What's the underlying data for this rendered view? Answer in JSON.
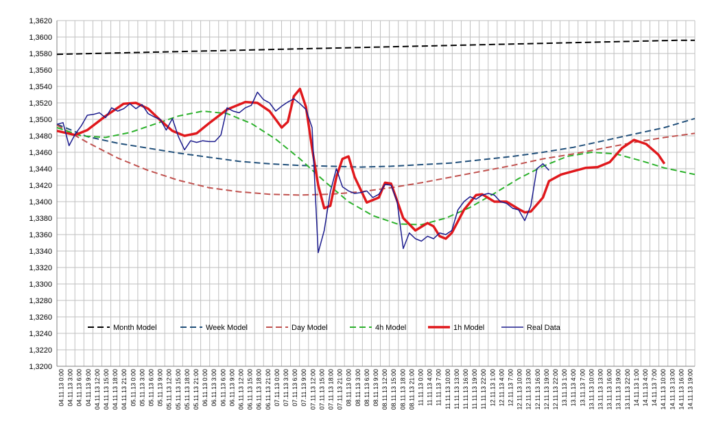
{
  "chart_data": {
    "type": "line",
    "title": "",
    "xlabel": "",
    "ylabel": "",
    "ylim": [
      1.32,
      1.362
    ],
    "grid": true,
    "legend_position": "bottom-inside",
    "y_ticks": [
      "1,3200",
      "1,3220",
      "1,3240",
      "1,3260",
      "1,3280",
      "1,3300",
      "1,3320",
      "1,3340",
      "1,3360",
      "1,3380",
      "1,3400",
      "1,3420",
      "1,3440",
      "1,3460",
      "1,3480",
      "1,3500",
      "1,3520",
      "1,3540",
      "1,3560",
      "1,3580",
      "1,3600",
      "1,3620"
    ],
    "x_ticks": [
      "04.11.13 0:00",
      "04.11.13 3:00",
      "04.11.13 6:00",
      "04.11.13 9:00",
      "04.11.13 12:00",
      "04.11.13 15:00",
      "04.11.13 18:00",
      "04.11.13 21:00",
      "05.11.13 0:00",
      "05.11.13 3:00",
      "05.11.13 6:00",
      "05.11.13 9:00",
      "05.11.13 12:00",
      "05.11.13 15:00",
      "05.11.13 18:00",
      "05.11.13 21:00",
      "06.11.13 0:00",
      "06.11.13 3:00",
      "06.11.13 6:00",
      "06.11.13 9:00",
      "06.11.13 12:00",
      "06.11.13 15:00",
      "06.11.13 18:00",
      "06.11.13 21:00",
      "07.11.13 0:00",
      "07.11.13 3:00",
      "07.11.13 6:00",
      "07.11.13 9:00",
      "07.11.13 12:00",
      "07.11.13 15:00",
      "07.11.13 18:00",
      "07.11.13 21:00",
      "08.11.13 0:00",
      "08.11.13 3:00",
      "08.11.13 6:00",
      "08.11.13 9:00",
      "08.11.13 12:00",
      "08.11.13 15:00",
      "08.11.13 18:00",
      "08.11.13 21:00",
      "11.11.13 0:00",
      "11.11.13 4:00",
      "11.11.13 7:00",
      "11.11.13 10:00",
      "11.11.13 13:00",
      "11.11.13 16:00",
      "11.11.13 19:00",
      "11.11.13 22:00",
      "12.11.13 1:00",
      "12.11.13 4:00",
      "12.11.13 7:00",
      "12.11.13 10:00",
      "12.11.13 13:00",
      "12.11.13 16:00",
      "12.11.13 19:00",
      "12.11.13 22:00",
      "13.11.13 1:00",
      "13.11.13 4:00",
      "13.11.13 7:00",
      "13.11.13 10:00",
      "13.11.13 13:00",
      "13.11.13 16:00",
      "13.11.13 19:00",
      "13.11.13 22:00",
      "14.11.13 1:00",
      "14.11.13 4:00",
      "14.11.13 7:00",
      "14.11.13 10:00",
      "14.11.13 13:00",
      "14.11.13 16:00",
      "14.11.13 19:00"
    ],
    "series": [
      {
        "name": "Month Model",
        "color": "#000000",
        "dash": "dashed",
        "width": 2,
        "values": [
          [
            0,
            1.3579
          ],
          [
            6,
            1.358
          ],
          [
            12,
            1.3581
          ],
          [
            18,
            1.3582
          ],
          [
            24,
            1.3583
          ],
          [
            30,
            1.3584
          ],
          [
            36,
            1.3585
          ],
          [
            42,
            1.3586
          ],
          [
            48,
            1.3587
          ],
          [
            54,
            1.3588
          ],
          [
            60,
            1.3589
          ],
          [
            66,
            1.359
          ],
          [
            72,
            1.3591
          ],
          [
            78,
            1.3592
          ],
          [
            84,
            1.3593
          ],
          [
            90,
            1.3594
          ],
          [
            96,
            1.3595
          ],
          [
            102,
            1.3596
          ],
          [
            105,
            1.3596
          ]
        ]
      },
      {
        "name": "Week Model",
        "color": "#1f4e79",
        "dash": "dashed",
        "width": 2,
        "values": [
          [
            0,
            1.3494
          ],
          [
            5,
            1.3479
          ],
          [
            10,
            1.3471
          ],
          [
            15,
            1.3465
          ],
          [
            20,
            1.3459
          ],
          [
            25,
            1.3454
          ],
          [
            30,
            1.3449
          ],
          [
            35,
            1.3446
          ],
          [
            40,
            1.3444
          ],
          [
            45,
            1.3443
          ],
          [
            50,
            1.3442
          ],
          [
            55,
            1.3443
          ],
          [
            60,
            1.3445
          ],
          [
            65,
            1.3447
          ],
          [
            70,
            1.3451
          ],
          [
            75,
            1.3455
          ],
          [
            80,
            1.346
          ],
          [
            85,
            1.3466
          ],
          [
            90,
            1.3474
          ],
          [
            95,
            1.3482
          ],
          [
            100,
            1.349
          ],
          [
            105,
            1.3501
          ]
        ]
      },
      {
        "name": "Day Model",
        "color": "#c0504d",
        "dash": "dashed",
        "width": 2,
        "values": [
          [
            0,
            1.3493
          ],
          [
            5,
            1.3472
          ],
          [
            10,
            1.3453
          ],
          [
            15,
            1.3438
          ],
          [
            20,
            1.3426
          ],
          [
            25,
            1.3417
          ],
          [
            30,
            1.3412
          ],
          [
            35,
            1.3409
          ],
          [
            40,
            1.3408
          ],
          [
            45,
            1.3409
          ],
          [
            50,
            1.3412
          ],
          [
            55,
            1.3417
          ],
          [
            60,
            1.3423
          ],
          [
            65,
            1.343
          ],
          [
            70,
            1.3437
          ],
          [
            75,
            1.3444
          ],
          [
            80,
            1.3452
          ],
          [
            85,
            1.3458
          ],
          [
            90,
            1.3465
          ],
          [
            95,
            1.3472
          ],
          [
            100,
            1.3478
          ],
          [
            105,
            1.3483
          ]
        ]
      },
      {
        "name": "4h Model",
        "color": "#2bb12b",
        "dash": "dashed",
        "width": 2,
        "values": [
          [
            0,
            1.349
          ],
          [
            4,
            1.348
          ],
          [
            8,
            1.3478
          ],
          [
            12,
            1.3484
          ],
          [
            16,
            1.3494
          ],
          [
            20,
            1.3504
          ],
          [
            24,
            1.351
          ],
          [
            28,
            1.3507
          ],
          [
            32,
            1.3495
          ],
          [
            36,
            1.3476
          ],
          [
            40,
            1.3452
          ],
          [
            44,
            1.3425
          ],
          [
            48,
            1.34
          ],
          [
            52,
            1.3383
          ],
          [
            56,
            1.3373
          ],
          [
            60,
            1.3372
          ],
          [
            64,
            1.338
          ],
          [
            68,
            1.3393
          ],
          [
            72,
            1.341
          ],
          [
            76,
            1.3428
          ],
          [
            80,
            1.3443
          ],
          [
            84,
            1.3455
          ],
          [
            88,
            1.346
          ],
          [
            92,
            1.3458
          ],
          [
            96,
            1.345
          ],
          [
            100,
            1.3441
          ],
          [
            105,
            1.3433
          ]
        ]
      },
      {
        "name": "1h Model",
        "color": "#e0181c",
        "dash": "solid",
        "width": 3.5,
        "values": [
          [
            0,
            1.3486
          ],
          [
            3,
            1.3481
          ],
          [
            5,
            1.3487
          ],
          [
            8,
            1.3504
          ],
          [
            11,
            1.3519
          ],
          [
            13,
            1.352
          ],
          [
            15,
            1.3513
          ],
          [
            17,
            1.3499
          ],
          [
            19,
            1.3486
          ],
          [
            21,
            1.348
          ],
          [
            23,
            1.3483
          ],
          [
            25,
            1.3495
          ],
          [
            28,
            1.3512
          ],
          [
            31,
            1.3521
          ],
          [
            33,
            1.352
          ],
          [
            35,
            1.351
          ],
          [
            37,
            1.349
          ],
          [
            38,
            1.3497
          ],
          [
            39,
            1.3528
          ],
          [
            40,
            1.3537
          ],
          [
            41,
            1.3515
          ],
          [
            42,
            1.3465
          ],
          [
            43,
            1.342
          ],
          [
            44,
            1.3392
          ],
          [
            45,
            1.3395
          ],
          [
            46,
            1.343
          ],
          [
            47,
            1.3452
          ],
          [
            48,
            1.3455
          ],
          [
            49,
            1.343
          ],
          [
            51,
            1.3399
          ],
          [
            53,
            1.3405
          ],
          [
            54,
            1.3423
          ],
          [
            55,
            1.3422
          ],
          [
            57,
            1.338
          ],
          [
            59,
            1.3365
          ],
          [
            61,
            1.3374
          ],
          [
            62,
            1.337
          ],
          [
            63,
            1.3358
          ],
          [
            64,
            1.3355
          ],
          [
            65,
            1.3362
          ],
          [
            67,
            1.339
          ],
          [
            69,
            1.3408
          ],
          [
            70,
            1.3409
          ],
          [
            72,
            1.34
          ],
          [
            74,
            1.34
          ],
          [
            76,
            1.3391
          ],
          [
            77,
            1.3387
          ],
          [
            78,
            1.3388
          ],
          [
            80,
            1.3405
          ],
          [
            81,
            1.3425
          ],
          [
            83,
            1.3433
          ],
          [
            85,
            1.3437
          ],
          [
            87,
            1.3441
          ],
          [
            89,
            1.3442
          ],
          [
            91,
            1.3448
          ],
          [
            93,
            1.3465
          ],
          [
            95,
            1.3475
          ],
          [
            97,
            1.347
          ],
          [
            99,
            1.3457
          ],
          [
            100,
            1.3446
          ]
        ]
      },
      {
        "name": "Real Data",
        "color": "#1a1a8c",
        "dash": "solid",
        "width": 1.5,
        "values": [
          [
            0,
            1.3494
          ],
          [
            1,
            1.3496
          ],
          [
            2,
            1.3468
          ],
          [
            3,
            1.3482
          ],
          [
            4,
            1.3492
          ],
          [
            5,
            1.3505
          ],
          [
            6,
            1.3506
          ],
          [
            7,
            1.3508
          ],
          [
            8,
            1.3502
          ],
          [
            9,
            1.3514
          ],
          [
            10,
            1.351
          ],
          [
            11,
            1.3513
          ],
          [
            12,
            1.3519
          ],
          [
            13,
            1.3513
          ],
          [
            14,
            1.3518
          ],
          [
            15,
            1.3507
          ],
          [
            16,
            1.3503
          ],
          [
            17,
            1.35
          ],
          [
            18,
            1.3487
          ],
          [
            19,
            1.3501
          ],
          [
            20,
            1.3479
          ],
          [
            21,
            1.3463
          ],
          [
            22,
            1.3474
          ],
          [
            23,
            1.3472
          ],
          [
            24,
            1.3474
          ],
          [
            25,
            1.3473
          ],
          [
            26,
            1.3473
          ],
          [
            27,
            1.3481
          ],
          [
            28,
            1.3514
          ],
          [
            29,
            1.351
          ],
          [
            30,
            1.3508
          ],
          [
            31,
            1.3514
          ],
          [
            32,
            1.3517
          ],
          [
            33,
            1.3533
          ],
          [
            34,
            1.3524
          ],
          [
            35,
            1.352
          ],
          [
            36,
            1.351
          ],
          [
            37,
            1.3516
          ],
          [
            38,
            1.3521
          ],
          [
            39,
            1.3525
          ],
          [
            40,
            1.3519
          ],
          [
            41,
            1.3512
          ],
          [
            42,
            1.349
          ],
          [
            43,
            1.3338
          ],
          [
            44,
            1.3365
          ],
          [
            45,
            1.3412
          ],
          [
            46,
            1.344
          ],
          [
            47,
            1.3418
          ],
          [
            48,
            1.3413
          ],
          [
            49,
            1.341
          ],
          [
            50,
            1.3411
          ],
          [
            51,
            1.3413
          ],
          [
            52,
            1.3405
          ],
          [
            53,
            1.3409
          ],
          [
            54,
            1.3421
          ],
          [
            55,
            1.342
          ],
          [
            56,
            1.34
          ],
          [
            57,
            1.3343
          ],
          [
            58,
            1.3362
          ],
          [
            59,
            1.3355
          ],
          [
            60,
            1.3352
          ],
          [
            61,
            1.3358
          ],
          [
            62,
            1.3355
          ],
          [
            63,
            1.3362
          ],
          [
            64,
            1.336
          ],
          [
            65,
            1.3365
          ],
          [
            66,
            1.339
          ],
          [
            67,
            1.34
          ],
          [
            68,
            1.3406
          ],
          [
            69,
            1.3403
          ],
          [
            70,
            1.3408
          ],
          [
            71,
            1.341
          ],
          [
            72,
            1.3408
          ],
          [
            73,
            1.34
          ],
          [
            74,
            1.3398
          ],
          [
            75,
            1.3392
          ],
          [
            76,
            1.339
          ],
          [
            77,
            1.3377
          ],
          [
            78,
            1.3395
          ],
          [
            79,
            1.344
          ],
          [
            80,
            1.3446
          ],
          [
            81,
            1.3438
          ]
        ]
      }
    ]
  }
}
